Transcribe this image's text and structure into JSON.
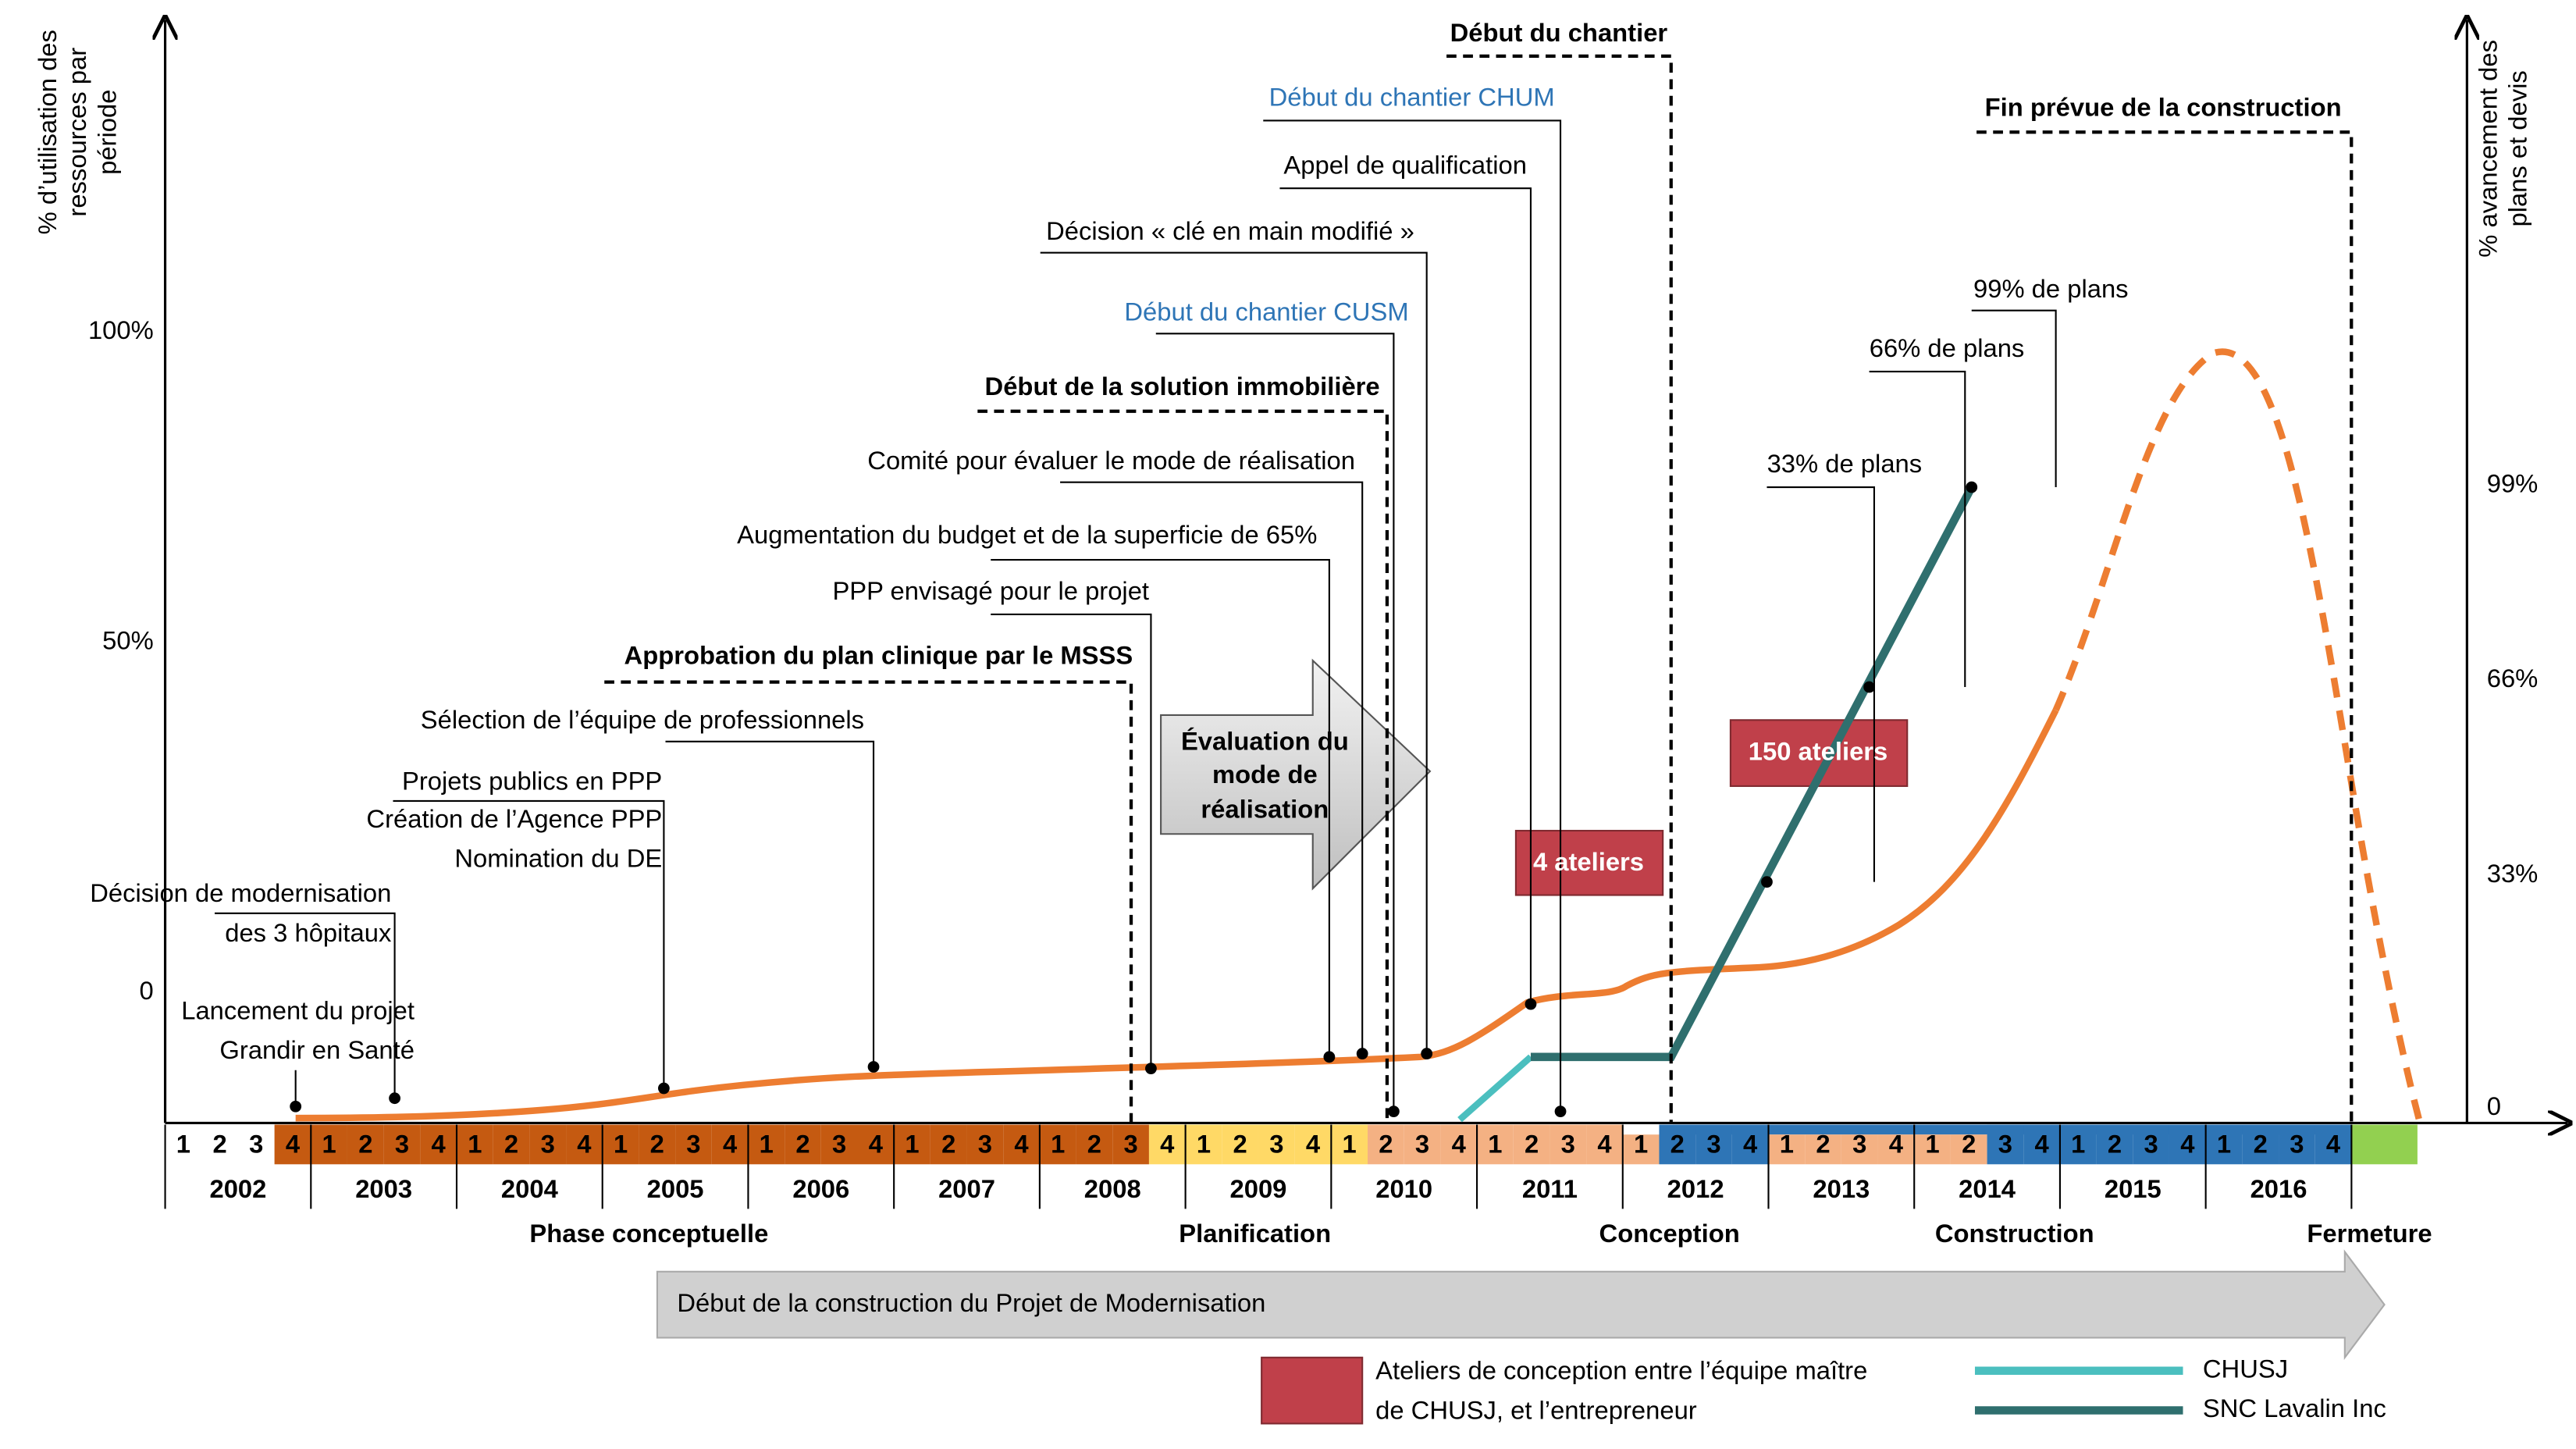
{
  "axes": {
    "left_label": [
      "% d’utilisation des",
      "ressources par",
      "période"
    ],
    "right_label": [
      "% avancement des",
      "plans et devis"
    ],
    "left_ticks": [
      "100%",
      "50%",
      "0"
    ],
    "right_ticks": [
      "99%",
      "66%",
      "33%",
      "0"
    ]
  },
  "milestones": [
    {
      "lines": [
        "Lancement du projet",
        "Grandir en Santé"
      ],
      "style": "plain"
    },
    {
      "lines": [
        "Décision de modernisation",
        "des 3 hôpitaux"
      ],
      "style": "plain"
    },
    {
      "lines": [
        "Projets publics en PPP",
        "Création de l’Agence PPP",
        "Nomination du DE"
      ],
      "style": "plain"
    },
    {
      "lines": [
        "Sélection de l’équipe de  professionnels"
      ],
      "style": "plain"
    },
    {
      "lines": [
        "Approbation du plan clinique par le MSSS"
      ],
      "style": "bold"
    },
    {
      "lines": [
        "PPP envisagé pour le projet"
      ],
      "style": "plain"
    },
    {
      "lines": [
        "Augmentation du budget et de la superficie de 65%"
      ],
      "style": "plain"
    },
    {
      "lines": [
        "Comité pour évaluer le mode de réalisation"
      ],
      "style": "plain"
    },
    {
      "lines": [
        "Début de la solution immobilière"
      ],
      "style": "bold"
    },
    {
      "lines": [
        "Début du chantier CUSM"
      ],
      "style": "blue"
    },
    {
      "lines": [
        "Décision « clé en main modifié »"
      ],
      "style": "plain"
    },
    {
      "lines": [
        "Appel de qualification"
      ],
      "style": "plain"
    },
    {
      "lines": [
        "Début du chantier CHUM"
      ],
      "style": "blue"
    },
    {
      "lines": [
        "Début du chantier"
      ],
      "style": "bold"
    },
    {
      "lines": [
        "Fin prévue de la construction"
      ],
      "style": "bold"
    },
    {
      "lines": [
        "33% de plans"
      ],
      "style": "plain"
    },
    {
      "lines": [
        "66% de plans"
      ],
      "style": "plain"
    },
    {
      "lines": [
        "99% de plans"
      ],
      "style": "plain"
    }
  ],
  "evaluation": [
    "Évaluation du",
    "mode de",
    "réalisation"
  ],
  "workshops": [
    "4 ateliers",
    "150 ateliers"
  ],
  "years": [
    {
      "year": "2002",
      "quarters": [
        "1",
        "2",
        "3",
        "4"
      ],
      "colors": [
        "#ffffff",
        "#ffffff",
        "#ffffff",
        "#c55a11"
      ]
    },
    {
      "year": "2003",
      "quarters": [
        "1",
        "2",
        "3",
        "4"
      ],
      "colors": [
        "#c55a11",
        "#c55a11",
        "#c55a11",
        "#c55a11"
      ]
    },
    {
      "year": "2004",
      "quarters": [
        "1",
        "2",
        "3",
        "4"
      ],
      "colors": [
        "#c55a11",
        "#c55a11",
        "#c55a11",
        "#c55a11"
      ]
    },
    {
      "year": "2005",
      "quarters": [
        "1",
        "2",
        "3",
        "4"
      ],
      "colors": [
        "#c55a11",
        "#c55a11",
        "#c55a11",
        "#c55a11"
      ]
    },
    {
      "year": "2006",
      "quarters": [
        "1",
        "2",
        "3",
        "4"
      ],
      "colors": [
        "#c55a11",
        "#c55a11",
        "#c55a11",
        "#c55a11"
      ]
    },
    {
      "year": "2007",
      "quarters": [
        "1",
        "2",
        "3",
        "4"
      ],
      "colors": [
        "#c55a11",
        "#c55a11",
        "#c55a11",
        "#c55a11"
      ]
    },
    {
      "year": "2008",
      "quarters": [
        "1",
        "2",
        "3",
        "4"
      ],
      "colors": [
        "#c55a11",
        "#c55a11",
        "#c55a11",
        "#ffd966"
      ]
    },
    {
      "year": "2009",
      "quarters": [
        "1",
        "2",
        "3",
        "4"
      ],
      "colors": [
        "#ffd966",
        "#ffd966",
        "#ffd966",
        "#ffd966"
      ]
    },
    {
      "year": "2010",
      "quarters": [
        "1",
        "2",
        "3",
        "4"
      ],
      "colors": [
        "#ffd966",
        "#f4b183",
        "#f4b183",
        "#f4b183"
      ]
    },
    {
      "year": "2011",
      "quarters": [
        "1",
        "2",
        "3",
        "4"
      ],
      "colors": [
        "#f4b183",
        "#f4b183",
        "#f4b183",
        "#f4b183"
      ]
    },
    {
      "year": "2012",
      "quarters": [
        "1",
        "2",
        "3",
        "4"
      ],
      "colors": [
        "#f4b183",
        "#2e75b6",
        "#2e75b6",
        "#2e75b6"
      ]
    },
    {
      "year": "2013",
      "quarters": [
        "1",
        "2",
        "3",
        "4"
      ],
      "colors": [
        "#f4b183",
        "#f4b183",
        "#f4b183",
        "#f4b183"
      ]
    },
    {
      "year": "2014",
      "quarters": [
        "1",
        "2",
        "3",
        "4"
      ],
      "colors": [
        "#f4b183",
        "#f4b183",
        "#2e75b6",
        "#2e75b6"
      ]
    },
    {
      "year": "2015",
      "quarters": [
        "1",
        "2",
        "3",
        "4"
      ],
      "colors": [
        "#2e75b6",
        "#2e75b6",
        "#2e75b6",
        "#2e75b6"
      ]
    },
    {
      "year": "2016",
      "quarters": [
        "1",
        "2",
        "3",
        "4"
      ],
      "colors": [
        "#2e75b6",
        "#2e75b6",
        "#2e75b6",
        "#2e75b6"
      ]
    }
  ],
  "phases": [
    "Phase conceptuelle",
    "Planification",
    "Conception",
    "Construction",
    "Fermeture"
  ],
  "arrow_label": "Début de la construction du Projet de Modernisation",
  "legend": {
    "workshop": [
      "Ateliers de conception entre l’équipe maître",
      "de CHUSJ, et l’entrepreneur"
    ],
    "series": [
      {
        "name": "CHUSJ",
        "color": "#4bbfbf"
      },
      {
        "name": "SNC Lavalin Inc",
        "color": "#2f6f6e"
      }
    ]
  }
}
